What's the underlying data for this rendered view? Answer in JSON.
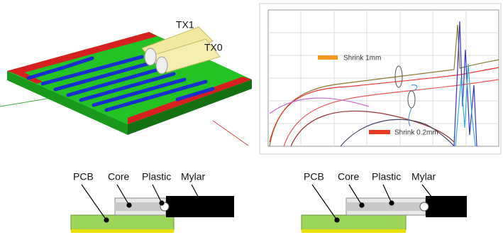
{
  "pcb_render": {
    "labels": [
      "TX1",
      "TX0"
    ]
  },
  "plot": {
    "annotations": [
      "Shrink 1mm",
      "Shrink 0.2mm"
    ]
  },
  "cross_sections": [
    {
      "labels": [
        "PCB",
        "Core",
        "Plastic",
        "Mylar"
      ]
    },
    {
      "labels": [
        "PCB",
        "Core",
        "Plastic",
        "Mylar"
      ]
    }
  ]
}
